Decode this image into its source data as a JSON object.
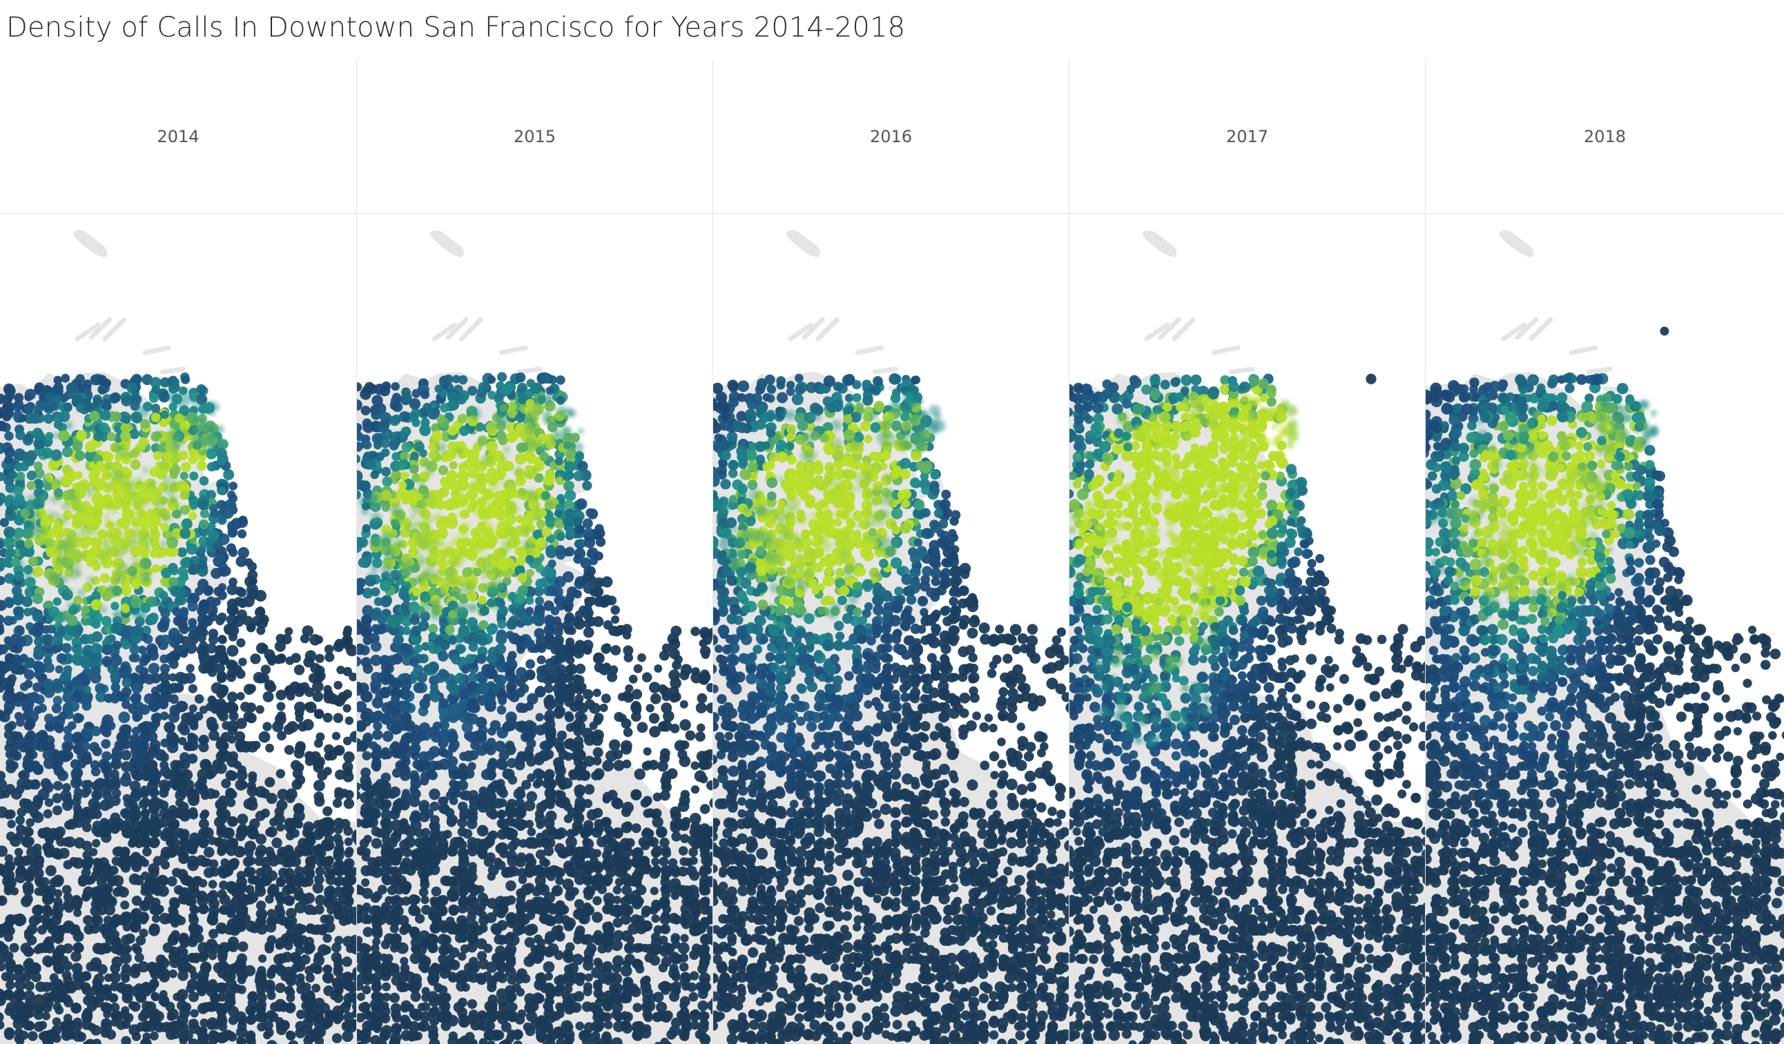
{
  "title": "Density of Calls In Downtown San Francisco for Years 2014-2018",
  "colors": {
    "land": "#e5e5e5",
    "dot_dark": "#1b3a56",
    "density_low": "#1d4e7e",
    "density_mid": "#1f8f8c",
    "density_high": "#b8de2a",
    "gridline": "#e4e4e4"
  },
  "panels": [
    {
      "year": "2014",
      "intensity": 0.45
    },
    {
      "year": "2015",
      "intensity": 0.5
    },
    {
      "year": "2016",
      "intensity": 0.47
    },
    {
      "year": "2017",
      "intensity": 1.0
    },
    {
      "year": "2018",
      "intensity": 0.5
    }
  ]
}
